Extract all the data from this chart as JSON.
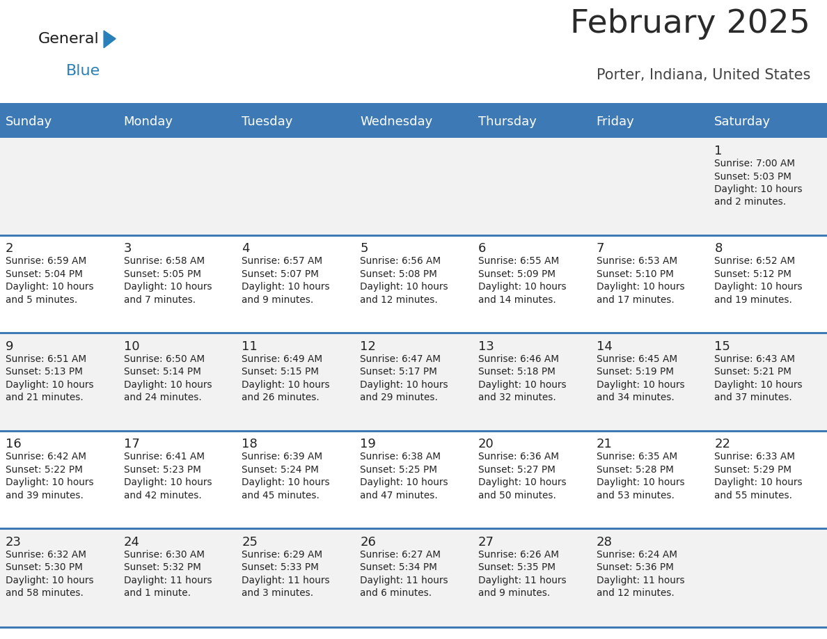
{
  "title": "February 2025",
  "subtitle": "Porter, Indiana, United States",
  "header_bg": "#3d7ab5",
  "header_text_color": "#ffffff",
  "day_names": [
    "Sunday",
    "Monday",
    "Tuesday",
    "Wednesday",
    "Thursday",
    "Friday",
    "Saturday"
  ],
  "row_bg_even": "#f2f2f2",
  "row_bg_odd": "#ffffff",
  "separator_color": "#3d7ab5",
  "text_color": "#222222",
  "day_number_color": "#222222",
  "logo_text1": "General",
  "logo_text2": "Blue",
  "logo_color1": "#1a1a1a",
  "logo_color2": "#2980b9",
  "logo_triangle_color": "#2980b9",
  "calendar_data": [
    [
      null,
      null,
      null,
      null,
      null,
      null,
      {
        "day": 1,
        "sunrise": "7:00 AM",
        "sunset": "5:03 PM",
        "daylight_hrs": "10 hours",
        "daylight_min": "and 2 minutes."
      }
    ],
    [
      {
        "day": 2,
        "sunrise": "6:59 AM",
        "sunset": "5:04 PM",
        "daylight_hrs": "10 hours",
        "daylight_min": "and 5 minutes."
      },
      {
        "day": 3,
        "sunrise": "6:58 AM",
        "sunset": "5:05 PM",
        "daylight_hrs": "10 hours",
        "daylight_min": "and 7 minutes."
      },
      {
        "day": 4,
        "sunrise": "6:57 AM",
        "sunset": "5:07 PM",
        "daylight_hrs": "10 hours",
        "daylight_min": "and 9 minutes."
      },
      {
        "day": 5,
        "sunrise": "6:56 AM",
        "sunset": "5:08 PM",
        "daylight_hrs": "10 hours",
        "daylight_min": "and 12 minutes."
      },
      {
        "day": 6,
        "sunrise": "6:55 AM",
        "sunset": "5:09 PM",
        "daylight_hrs": "10 hours",
        "daylight_min": "and 14 minutes."
      },
      {
        "day": 7,
        "sunrise": "6:53 AM",
        "sunset": "5:10 PM",
        "daylight_hrs": "10 hours",
        "daylight_min": "and 17 minutes."
      },
      {
        "day": 8,
        "sunrise": "6:52 AM",
        "sunset": "5:12 PM",
        "daylight_hrs": "10 hours",
        "daylight_min": "and 19 minutes."
      }
    ],
    [
      {
        "day": 9,
        "sunrise": "6:51 AM",
        "sunset": "5:13 PM",
        "daylight_hrs": "10 hours",
        "daylight_min": "and 21 minutes."
      },
      {
        "day": 10,
        "sunrise": "6:50 AM",
        "sunset": "5:14 PM",
        "daylight_hrs": "10 hours",
        "daylight_min": "and 24 minutes."
      },
      {
        "day": 11,
        "sunrise": "6:49 AM",
        "sunset": "5:15 PM",
        "daylight_hrs": "10 hours",
        "daylight_min": "and 26 minutes."
      },
      {
        "day": 12,
        "sunrise": "6:47 AM",
        "sunset": "5:17 PM",
        "daylight_hrs": "10 hours",
        "daylight_min": "and 29 minutes."
      },
      {
        "day": 13,
        "sunrise": "6:46 AM",
        "sunset": "5:18 PM",
        "daylight_hrs": "10 hours",
        "daylight_min": "and 32 minutes."
      },
      {
        "day": 14,
        "sunrise": "6:45 AM",
        "sunset": "5:19 PM",
        "daylight_hrs": "10 hours",
        "daylight_min": "and 34 minutes."
      },
      {
        "day": 15,
        "sunrise": "6:43 AM",
        "sunset": "5:21 PM",
        "daylight_hrs": "10 hours",
        "daylight_min": "and 37 minutes."
      }
    ],
    [
      {
        "day": 16,
        "sunrise": "6:42 AM",
        "sunset": "5:22 PM",
        "daylight_hrs": "10 hours",
        "daylight_min": "and 39 minutes."
      },
      {
        "day": 17,
        "sunrise": "6:41 AM",
        "sunset": "5:23 PM",
        "daylight_hrs": "10 hours",
        "daylight_min": "and 42 minutes."
      },
      {
        "day": 18,
        "sunrise": "6:39 AM",
        "sunset": "5:24 PM",
        "daylight_hrs": "10 hours",
        "daylight_min": "and 45 minutes."
      },
      {
        "day": 19,
        "sunrise": "6:38 AM",
        "sunset": "5:25 PM",
        "daylight_hrs": "10 hours",
        "daylight_min": "and 47 minutes."
      },
      {
        "day": 20,
        "sunrise": "6:36 AM",
        "sunset": "5:27 PM",
        "daylight_hrs": "10 hours",
        "daylight_min": "and 50 minutes."
      },
      {
        "day": 21,
        "sunrise": "6:35 AM",
        "sunset": "5:28 PM",
        "daylight_hrs": "10 hours",
        "daylight_min": "and 53 minutes."
      },
      {
        "day": 22,
        "sunrise": "6:33 AM",
        "sunset": "5:29 PM",
        "daylight_hrs": "10 hours",
        "daylight_min": "and 55 minutes."
      }
    ],
    [
      {
        "day": 23,
        "sunrise": "6:32 AM",
        "sunset": "5:30 PM",
        "daylight_hrs": "10 hours",
        "daylight_min": "and 58 minutes."
      },
      {
        "day": 24,
        "sunrise": "6:30 AM",
        "sunset": "5:32 PM",
        "daylight_hrs": "11 hours",
        "daylight_min": "and 1 minute."
      },
      {
        "day": 25,
        "sunrise": "6:29 AM",
        "sunset": "5:33 PM",
        "daylight_hrs": "11 hours",
        "daylight_min": "and 3 minutes."
      },
      {
        "day": 26,
        "sunrise": "6:27 AM",
        "sunset": "5:34 PM",
        "daylight_hrs": "11 hours",
        "daylight_min": "and 6 minutes."
      },
      {
        "day": 27,
        "sunrise": "6:26 AM",
        "sunset": "5:35 PM",
        "daylight_hrs": "11 hours",
        "daylight_min": "and 9 minutes."
      },
      {
        "day": 28,
        "sunrise": "6:24 AM",
        "sunset": "5:36 PM",
        "daylight_hrs": "11 hours",
        "daylight_min": "and 12 minutes."
      },
      null
    ]
  ]
}
